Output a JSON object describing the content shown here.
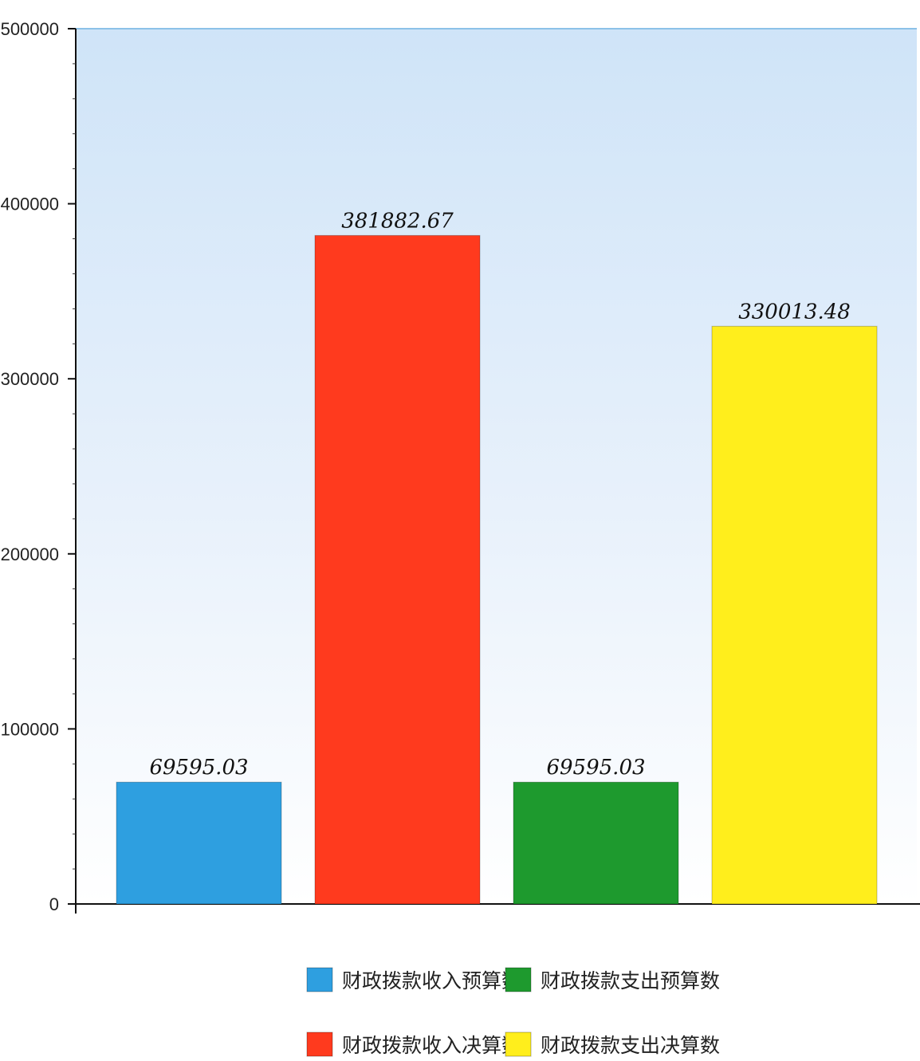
{
  "chart_data": {
    "type": "bar",
    "categories": [
      "财政拨款收入预算数",
      "财政拨款收入决算数",
      "财政拨款支出预算数",
      "财政拨款支出决算数"
    ],
    "values": [
      69595.03,
      381882.67,
      69595.03,
      330013.48
    ],
    "data_labels": [
      "69595.03",
      "381882.67",
      "69595.03",
      "330013.48"
    ],
    "colors": [
      "#2e9fe0",
      "#ff3a1e",
      "#1e9a2e",
      "#ffee1c"
    ],
    "ylim": [
      0,
      500000
    ],
    "yticks": [
      "0",
      "100000",
      "200000",
      "300000",
      "400000",
      "500000"
    ],
    "grid": false,
    "legend": {
      "position": "bottom",
      "entries": [
        "财政拨款收入预算数",
        "财政拨款支出预算数",
        "财政拨款收入决算数",
        "财政拨款支出决算数"
      ],
      "colors": [
        "#2e9fe0",
        "#1e9a2e",
        "#ff3a1e",
        "#ffee1c"
      ]
    }
  }
}
